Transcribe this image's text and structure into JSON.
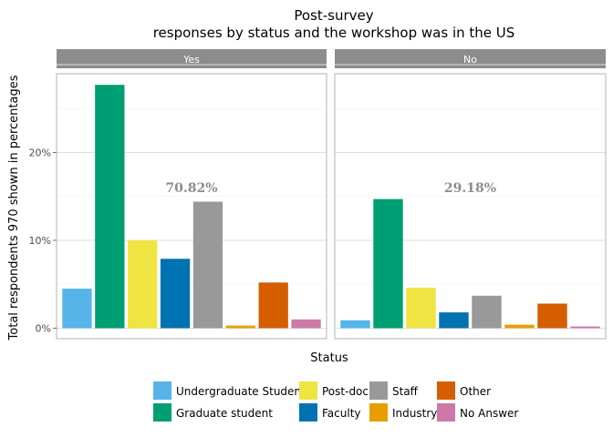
{
  "chart_data": {
    "type": "bar",
    "title_line1": "Post-survey",
    "title_line2": "responses by status and the workshop was in the US",
    "xlabel": "Status",
    "ylabel": "Total respondents 970 shown in percentages",
    "ylim": [
      0,
      30
    ],
    "yticks": [
      0,
      10,
      20
    ],
    "ytick_labels": [
      "0%",
      "10%",
      "20%"
    ],
    "grid": true,
    "legend_position": "bottom",
    "categories": [
      "Undergraduate Student",
      "Graduate student",
      "Post-doc",
      "Faculty",
      "Staff",
      "Industry",
      "Other",
      "No Answer"
    ],
    "colors": [
      "#56B4E9",
      "#009E73",
      "#F0E442",
      "#0072B2",
      "#999999",
      "#E69F00",
      "#D55E00",
      "#CC79A7"
    ],
    "panels": [
      {
        "label": "Yes",
        "annotation": "70.82%",
        "values": [
          4.5,
          27.7,
          10.0,
          7.9,
          14.4,
          0.3,
          5.2,
          1.0
        ]
      },
      {
        "label": "No",
        "annotation": "29.18%",
        "values": [
          0.9,
          14.7,
          4.6,
          1.8,
          3.7,
          0.4,
          2.8,
          0.2
        ]
      }
    ]
  }
}
